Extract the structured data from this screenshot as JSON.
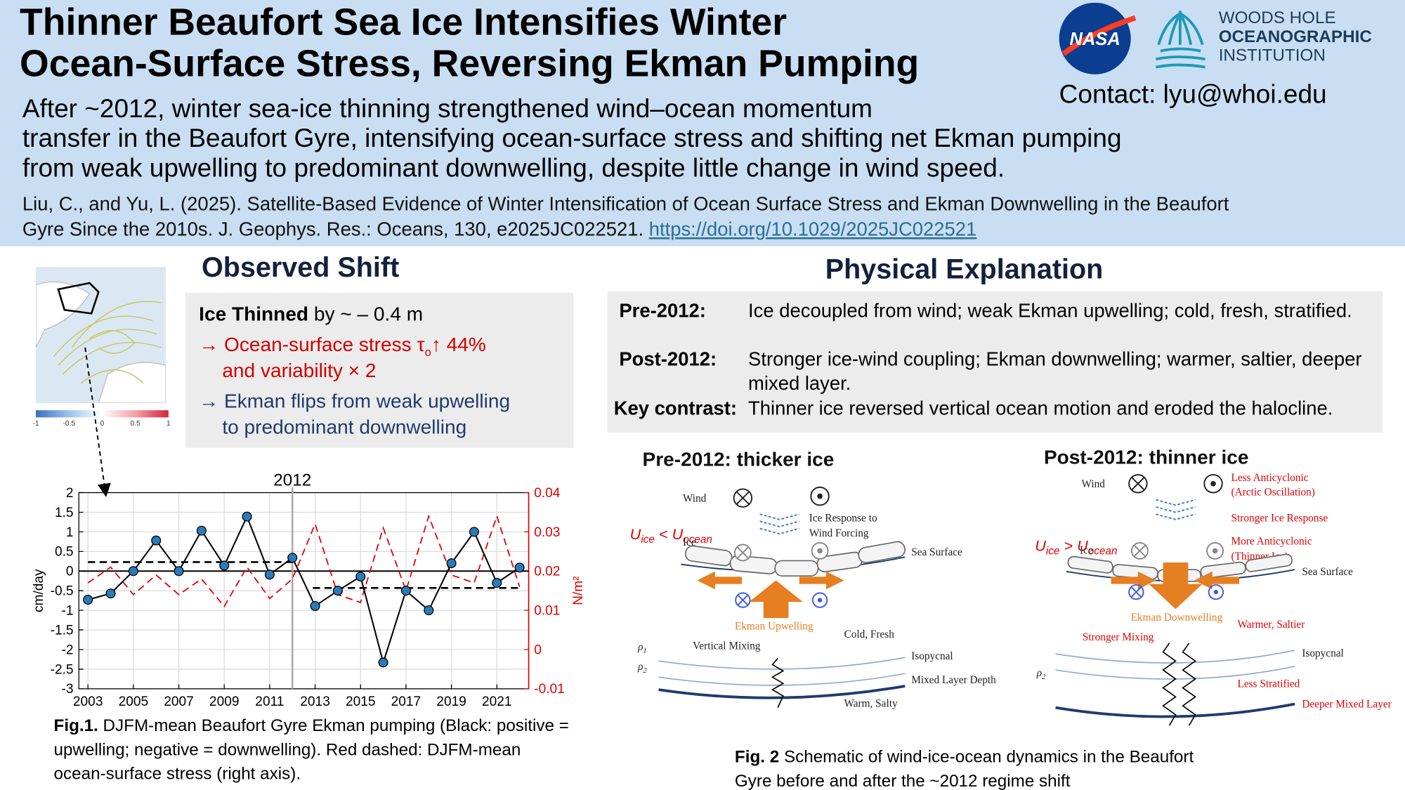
{
  "header": {
    "title_lines": [
      "Thinner Beaufort Sea Ice Intensifies Winter",
      "Ocean-Surface Stress, Reversing Ekman Pumping"
    ],
    "summary_lines": [
      "After ~2012, winter sea-ice thinning strengthened wind–ocean momentum",
      "transfer in the Beaufort Gyre, intensifying ocean-surface stress and shifting net Ekman pumping",
      "from weak upwelling to predominant downwelling, despite little change in wind speed."
    ],
    "citation_lines": [
      "Liu, C., and Yu, L. (2025). Satellite-Based Evidence of Winter Intensification of Ocean Surface Stress and Ekman Downwelling in the Beaufort",
      "Gyre Since the 2010s. J. Geophys. Res.: Oceans, 130, e2025JC022521."
    ],
    "doi_link": "https://doi.org/10.1029/2025JC022521",
    "contact": "Contact: lyu@whoi.edu",
    "logos": {
      "nasa": "NASA",
      "whoi_lines": [
        "WOODS HOLE",
        "OCEANOGRAPHIC",
        "INSTITUTION"
      ]
    }
  },
  "observed_shift": {
    "heading": "Observed Shift",
    "ice_thinned": "Ice Thinned",
    "ice_thinned_amount": " by ~ – 0.4 m",
    "stress_bullet": [
      "→ Ocean-surface stress τ",
      "o",
      "↑ 44%"
    ],
    "stress_bullet_2": "and variability × 2",
    "ekman_bullet_lines": [
      "→ Ekman flips from weak upwelling",
      "to predominant downwelling"
    ],
    "map_colorbar_ticks": [
      -1,
      -0.5,
      0,
      0.5,
      1
    ]
  },
  "chart_data": {
    "type": "line",
    "x": [
      2003,
      2004,
      2005,
      2006,
      2007,
      2008,
      2009,
      2010,
      2011,
      2012,
      2013,
      2014,
      2015,
      2016,
      2017,
      2018,
      2019,
      2020,
      2021,
      2022
    ],
    "series": [
      {
        "color": "#000000",
        "marker_color": "#2b7bb9",
        "values": [
          -0.73,
          -0.57,
          0,
          0.78,
          0,
          1.03,
          0.14,
          1.39,
          -0.09,
          0.34,
          -0.89,
          -0.5,
          -0.14,
          -2.33,
          -0.5,
          -1.0,
          0.2,
          1.0,
          -0.3,
          0.09
        ]
      },
      {
        "color": "#e00000",
        "axis": "y2",
        "dashed": true,
        "values": [
          0.017,
          0.021,
          0.014,
          0.019,
          0.014,
          0.018,
          0.011,
          0.021,
          0.013,
          0.018,
          0.032,
          0.014,
          0.012,
          0.031,
          0.015,
          0.034,
          0.019,
          0.017,
          0.034,
          0.016
        ]
      }
    ],
    "mean_lines": [
      {
        "x": [
          2003,
          2012.1
        ],
        "value": 0.23
      },
      {
        "x": [
          2012.9,
          2022
        ],
        "value": -0.43
      }
    ],
    "annotations": [
      {
        "text": "2012",
        "x": 2012
      }
    ],
    "xlim": [
      2002.6,
      2022.4
    ],
    "xticks": [
      2003,
      2005,
      2007,
      2009,
      2011,
      2013,
      2015,
      2017,
      2019,
      2021
    ],
    "ylim": [
      -3,
      2
    ],
    "yticks": [
      -3,
      -2.5,
      -2,
      -1.5,
      -1,
      -0.5,
      0,
      0.5,
      1,
      1.5,
      2
    ],
    "y2lim": [
      -0.01,
      0.04
    ],
    "y2ticks": [
      -0.01,
      0,
      0.01,
      0.02,
      0.03,
      0.04
    ],
    "ylabel": "cm/day",
    "y2label": "N/m²",
    "y2color": "#e00000",
    "grid": true
  },
  "figure1_caption": {
    "label": "Fig.1.",
    "text": " DJFM-mean Beaufort Gyre Ekman pumping (Black: positive = upwelling; negative = downwelling). Red dashed: DJFM-mean ocean-surface stress (right axis)."
  },
  "physical_explanation": {
    "heading": "Physical Explanation",
    "rows": [
      [
        "Pre-2012:",
        "Ice decoupled from wind; weak Ekman upwelling; cold, fresh, stratified."
      ],
      [
        "Post-2012:",
        "Stronger ice-wind coupling; Ekman downwelling; warmer, saltier, deeper mixed layer."
      ],
      [
        "Key contrast:",
        "Thinner ice reversed vertical ocean motion and eroded the halocline."
      ]
    ]
  },
  "figure2": {
    "pre": {
      "title": "Pre-2012: thicker ice",
      "wind": "Wind",
      "ice_response_lines": [
        "Ice Response to",
        "Wind Forcing"
      ],
      "u_label": [
        "U",
        "ice",
        " < U",
        "ocean"
      ],
      "ice": "Ice",
      "sea_surface": "Sea Surface",
      "ekman": "Ekman Upwelling",
      "cold_fresh": "Cold, Fresh",
      "rho1": [
        "ρ",
        "1"
      ],
      "rho2": [
        "ρ",
        "2"
      ],
      "vertical_mixing": "Vertical Mixing",
      "isopycnal": "Isopycnal",
      "mixed_layer_depth": "Mixed Layer Depth",
      "warm_salty": "Warm, Salty"
    },
    "post": {
      "title": "Post-2012: thinner ice",
      "wind": "Wind",
      "less_anticyclonic_lines": [
        "Less Anticyclonic",
        "(Arctic Oscillation)"
      ],
      "stronger_ice_response": "Stronger Ice Response",
      "more_anticyclonic_lines": [
        "More Anticyclonic",
        "(Thinner Ice)"
      ],
      "u_label": [
        "U",
        "ice",
        " > U",
        "ocean"
      ],
      "ice": "Ice",
      "sea_surface": "Sea Surface",
      "ekman": "Ekman Downwelling",
      "warmer_saltier": "Warmer, Saltier",
      "stronger_mixing": "Stronger Mixing",
      "isopycnal": "Isopycnal",
      "rho2": [
        "ρ",
        "2"
      ],
      "less_stratified": "Less Stratified",
      "deeper_mixed_layer": "Deeper Mixed Layer"
    },
    "caption": {
      "label": "Fig. 2",
      "text": " Schematic of wind-ice-ocean dynamics in the Beaufort Gyre before and after the ~2012 regime shift"
    }
  }
}
